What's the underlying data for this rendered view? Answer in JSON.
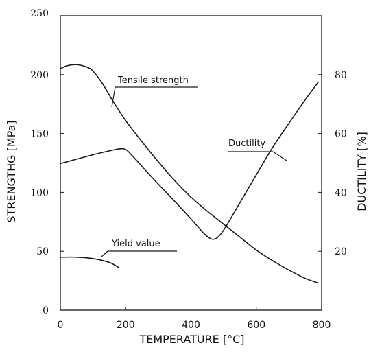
{
  "chart_data": {
    "type": "line",
    "title": "",
    "xlabel": "TEMPERATURE [°C]",
    "ylabel_left": "STRENGTHG [MPa]",
    "ylabel_right": "DUCTILITY [%]",
    "xlim": [
      0,
      800
    ],
    "ylim_left": [
      0,
      250
    ],
    "ylim_right": [
      0,
      100
    ],
    "x_ticks": [
      "0",
      "200",
      "400",
      "600",
      "800"
    ],
    "y_left_ticks": [
      "0",
      "50",
      "100",
      "150",
      "200",
      "250"
    ],
    "y_right_ticks": [
      "20",
      "40",
      "60",
      "80"
    ],
    "grid": false,
    "legend": "none",
    "series": [
      {
        "name": "Tensile strength",
        "axis": "left",
        "x": [
          0,
          20,
          50,
          80,
          100,
          130,
          160,
          200,
          250,
          300,
          350,
          400,
          450,
          500,
          550,
          600,
          650,
          700,
          750,
          790
        ],
        "y": [
          205,
          207.5,
          208.5,
          206.5,
          203,
          192,
          178,
          161,
          143,
          126,
          110,
          96,
          84,
          73,
          62,
          51,
          42,
          34,
          27,
          23
        ]
      },
      {
        "name": "Ductility",
        "axis": "right",
        "x": [
          0,
          50,
          100,
          150,
          180,
          200,
          220,
          260,
          300,
          350,
          400,
          440,
          460,
          470,
          480,
          500,
          550,
          600,
          650,
          700,
          750,
          790
        ],
        "y": [
          49.8,
          51.3,
          52.8,
          54.1,
          54.8,
          54.6,
          52.5,
          47.6,
          42.8,
          37,
          31,
          26,
          24.3,
          24.1,
          24.6,
          27.2,
          36.5,
          46,
          55.3,
          63.5,
          71.5,
          77.5
        ]
      },
      {
        "name": "Yield value",
        "axis": "left",
        "x": [
          0,
          50,
          100,
          150,
          180
        ],
        "y": [
          45,
          45,
          43.8,
          40.5,
          36
        ]
      }
    ],
    "annotations": [
      {
        "text": "Tensile strength",
        "target": "Tensile strength"
      },
      {
        "text": "Ductility",
        "target": "Ductility"
      },
      {
        "text": "Yield value",
        "target": "Yield value"
      }
    ]
  }
}
